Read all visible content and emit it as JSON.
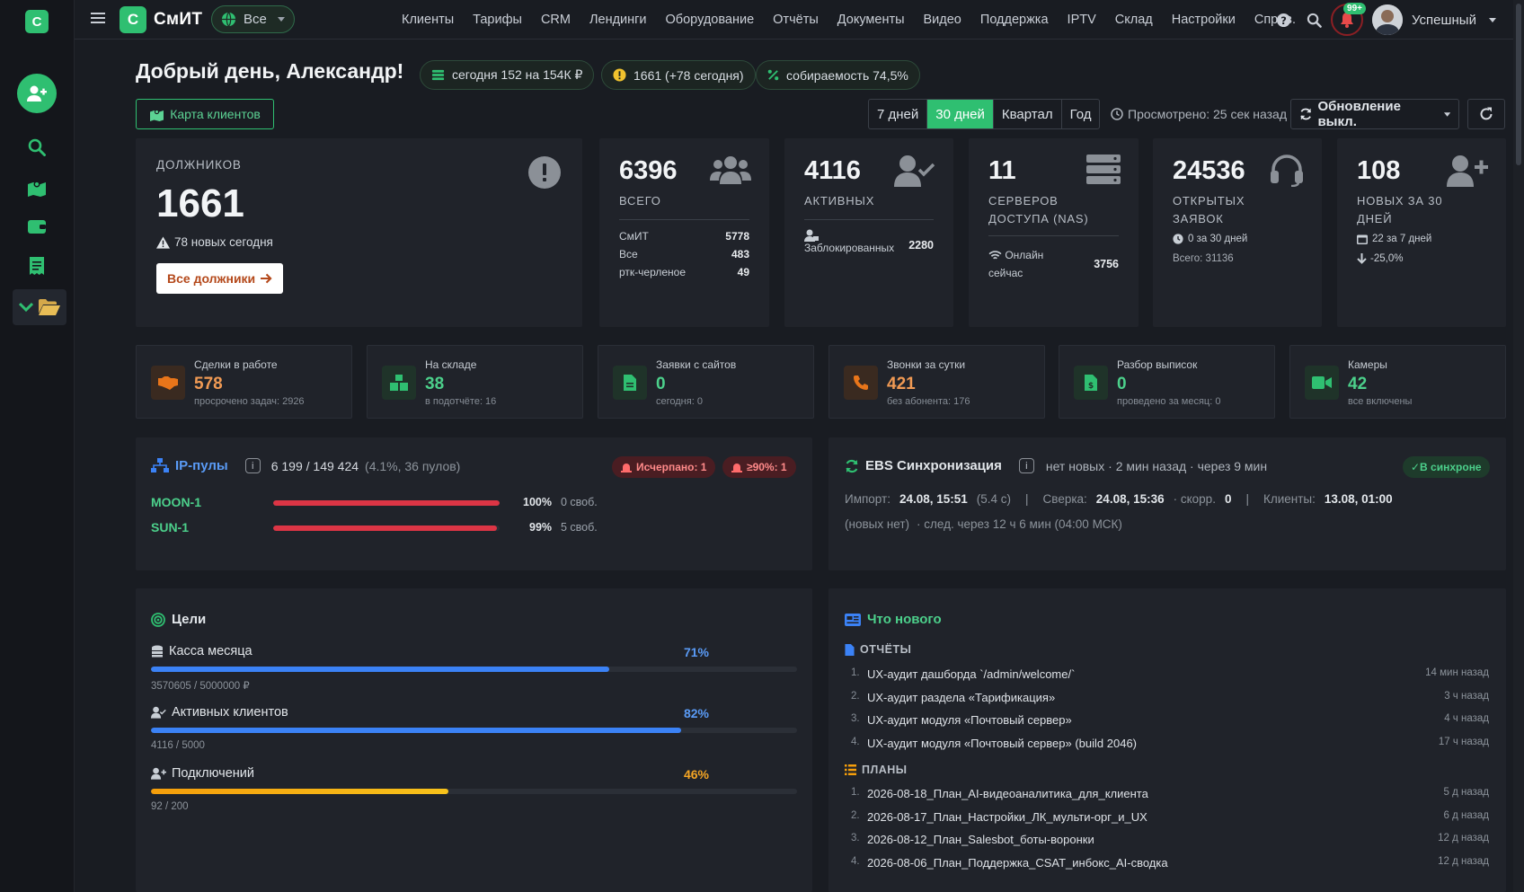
{
  "sidebar": {
    "logo": "С",
    "items": [
      {
        "icon": "add-user-icon"
      },
      {
        "icon": "search-icon"
      },
      {
        "icon": "map-icon"
      },
      {
        "icon": "wallet-icon"
      },
      {
        "icon": "receipt-icon"
      },
      {
        "icon": "folder-icon"
      }
    ]
  },
  "topbar": {
    "logo": "С",
    "brand": "СмИТ",
    "scope": "Все",
    "nav": [
      "Клиенты",
      "Тарифы",
      "CRM",
      "Лендинги",
      "Оборудование",
      "Отчёты",
      "Документы",
      "Видео",
      "Поддержка",
      "IPTV",
      "Склад",
      "Настройки",
      "Справ."
    ],
    "notif_badge": "99+",
    "username": "Успешный"
  },
  "header": {
    "greeting": "Добрый день, Александр!",
    "pill_today": "сегодня 152 на  154К ₽",
    "pill_debtors": "1661 (+78 сегодня)",
    "pill_collect": "собираемость  74,5%",
    "map_button": "Карта клиентов",
    "periods": [
      "7 дней",
      "30 дней",
      "Квартал",
      "Год"
    ],
    "active_period": "30 дней",
    "viewed": "Просмотрено: 25 сек назад",
    "update": "Обновление выкл."
  },
  "debtors": {
    "label": "ДОЛЖНИКОВ",
    "value": "1661",
    "new_today": "78 новых сегодня",
    "button": "Все должники"
  },
  "stats": {
    "total": {
      "value": "6396",
      "label": "ВСЕГО",
      "rows": [
        [
          "СмИТ",
          "5778"
        ],
        [
          "Все",
          "483"
        ],
        [
          "ртк-черленое",
          "49"
        ]
      ]
    },
    "active": {
      "value": "4116",
      "label": "АКТИВНЫХ",
      "blocked_label": "Заблокированных",
      "blocked": "2280"
    },
    "nas": {
      "value": "11",
      "label": "СЕРВЕРОВ ДОСТУПА (NAS)",
      "online_label": "Онлайн сейчас",
      "online": "3756"
    },
    "tickets": {
      "value": "24536",
      "label": "ОТКРЫТЫХ ЗАЯВОК",
      "sub1": "0 за 30 дней",
      "sub2": "Всего: 31136"
    },
    "new30": {
      "value": "108",
      "label": "НОВЫХ ЗА 30 ДНЕЙ",
      "sub1": "22 за 7 дней",
      "sub2": "-25,0%"
    }
  },
  "mini": [
    {
      "title": "Сделки в работе",
      "value": "578",
      "sub": "просрочено задач: 2926",
      "color": "#e8751a",
      "icon": "handshake-icon"
    },
    {
      "title": "На складе",
      "value": "38",
      "sub": "в подотчёте: 16",
      "color": "#2fbf71",
      "icon": "boxes-icon"
    },
    {
      "title": "Заявки с сайтов",
      "value": "0",
      "sub": "сегодня: 0",
      "color": "#2fbf71",
      "icon": "file-icon"
    },
    {
      "title": "Звонки за сутки",
      "value": "421",
      "sub": "без абонента: 176",
      "color": "#e8751a",
      "icon": "phone-icon"
    },
    {
      "title": "Разбор выписок",
      "value": "0",
      "sub": "проведено за месяц: 0",
      "color": "#2fbf71",
      "icon": "document-icon"
    },
    {
      "title": "Камеры",
      "value": "42",
      "sub": "все включены",
      "color": "#2fbf71",
      "icon": "camera-icon"
    }
  ],
  "ip_pools": {
    "title": "IP-пулы",
    "summary": "6 199 / 149 424",
    "summary_extra": "(4.1%, 36 пулов)",
    "badge_exhausted": "Исчерпано: 1",
    "badge_90": "≥90%: 1",
    "pools": [
      {
        "name": "MOON-1",
        "pct_label": "100%",
        "free": "0 своб.",
        "fill": 1.0
      },
      {
        "name": "SUN-1",
        "pct_label": "99%",
        "free": "5 своб.",
        "fill": 0.99
      }
    ]
  },
  "ebs": {
    "title": "EBS Синхронизация",
    "status": "нет новых · 2 мин назад · через 9 мин",
    "badge": "✓В синхроне",
    "import_label": "Импорт:",
    "import_val": "24.08, 15:51",
    "import_dur": "(5.4 с)",
    "check_label": "Сверка:",
    "check_val": "24.08, 15:36",
    "speed_label": "· скорр.",
    "speed_val": "0",
    "clients_label": "Клиенты:",
    "clients_val": "13.08, 01:00",
    "line2a": "(новых нет)",
    "line2b": "· след. через 12 ч 6 мин (04:00 МСК)"
  },
  "goals": {
    "title": "Цели",
    "items": [
      {
        "label": "Касса месяца",
        "pct": "71%",
        "sub": "3570605 / 5000000 ₽",
        "fill": 0.71,
        "color": "#3b82f6",
        "icon": "coins-icon"
      },
      {
        "label": "Активных клиентов",
        "pct": "82%",
        "sub": "4116 / 5000",
        "fill": 0.82,
        "color": "#3b82f6",
        "icon": "user-check-icon"
      },
      {
        "label": "Подключений",
        "pct": "46%",
        "sub": "92 / 200",
        "fill": 0.46,
        "color": "#f59e0b",
        "icon": "user-plus-icon"
      }
    ]
  },
  "news": {
    "title": "Что нового",
    "reports_title": "ОТЧЁТЫ",
    "reports": [
      {
        "text": "UX-аудит дашборда `/admin/welcome/`",
        "time": "14 мин назад"
      },
      {
        "text": "UX-аудит раздела «Тарификация»",
        "time": "3 ч назад"
      },
      {
        "text": "UX-аудит модуля «Почтовый сервер»",
        "time": "4 ч назад"
      },
      {
        "text": "UX-аудит модуля «Почтовый сервер» (build 2046)",
        "time": "17 ч назад"
      }
    ],
    "plans_title": "ПЛАНЫ",
    "plans": [
      {
        "text": "2026-08-18_План_AI-видеоаналитика_для_клиента",
        "time": "5 д назад"
      },
      {
        "text": "2026-08-17_План_Настройки_ЛК_мульти-орг_и_UX",
        "time": "6 д назад"
      },
      {
        "text": "2026-08-12_План_Salesbot_боты-воронки",
        "time": "12 д назад"
      },
      {
        "text": "2026-08-06_План_Поддержка_CSAT_инбокс_AI-сводка",
        "time": "12 д назад"
      }
    ]
  }
}
